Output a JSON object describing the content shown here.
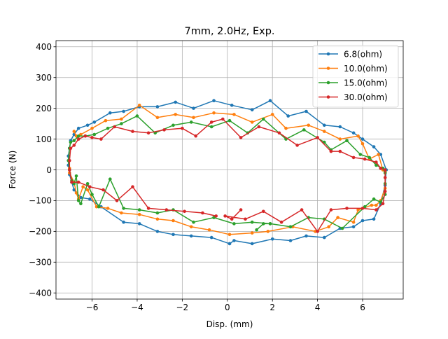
{
  "chart_data": {
    "type": "line",
    "title": "7mm, 2.0Hz, Exp.",
    "xlabel": "Disp. (mm)",
    "ylabel": "Force (N)",
    "xlim": [
      -7.6,
      7.8
    ],
    "ylim": [
      -420,
      420
    ],
    "xticks": [
      -6,
      -4,
      -2,
      0,
      2,
      4,
      6
    ],
    "yticks": [
      -400,
      -300,
      -200,
      -100,
      0,
      100,
      200,
      300,
      400
    ],
    "grid": true,
    "legend_position": "top-right",
    "series": [
      {
        "name": "6.8(ohm)",
        "color": "#1f77b4",
        "points": [
          [
            0.1,
            -240
          ],
          [
            0.3,
            -230
          ],
          [
            1.1,
            -240
          ],
          [
            2.0,
            -225
          ],
          [
            2.8,
            -230
          ],
          [
            3.5,
            -215
          ],
          [
            4.3,
            -220
          ],
          [
            5.0,
            -190
          ],
          [
            5.6,
            -185
          ],
          [
            6.0,
            -165
          ],
          [
            6.5,
            -160
          ],
          [
            6.8,
            -110
          ],
          [
            7.0,
            -50
          ],
          [
            7.05,
            0
          ],
          [
            6.8,
            50
          ],
          [
            6.5,
            75
          ],
          [
            6.0,
            100
          ],
          [
            5.6,
            120
          ],
          [
            5.0,
            140
          ],
          [
            4.3,
            145
          ],
          [
            3.5,
            190
          ],
          [
            2.7,
            175
          ],
          [
            1.9,
            225
          ],
          [
            1.1,
            195
          ],
          [
            0.2,
            210
          ],
          [
            -0.6,
            225
          ],
          [
            -1.5,
            200
          ],
          [
            -2.3,
            220
          ],
          [
            -3.1,
            205
          ],
          [
            -3.9,
            205
          ],
          [
            -4.6,
            190
          ],
          [
            -5.2,
            185
          ],
          [
            -5.9,
            155
          ],
          [
            -6.2,
            145
          ],
          [
            -6.6,
            135
          ],
          [
            -6.8,
            115
          ],
          [
            -6.95,
            95
          ],
          [
            -7.0,
            70
          ],
          [
            -7.05,
            45
          ],
          [
            -7.05,
            15
          ],
          [
            -7.0,
            -15
          ],
          [
            -6.9,
            -40
          ],
          [
            -6.8,
            -65
          ],
          [
            -6.5,
            -90
          ],
          [
            -6.1,
            -95
          ],
          [
            -5.6,
            -120
          ],
          [
            -4.6,
            -170
          ],
          [
            -3.9,
            -175
          ],
          [
            -3.1,
            -200
          ],
          [
            -2.4,
            -210
          ],
          [
            -1.6,
            -215
          ],
          [
            -0.7,
            -220
          ],
          [
            0.1,
            -240
          ]
        ]
      },
      {
        "name": "10.0(ohm)",
        "color": "#ff7f0e",
        "points": [
          [
            -6.8,
            125
          ],
          [
            -6.7,
            110
          ],
          [
            -6.5,
            115
          ],
          [
            -6.0,
            135
          ],
          [
            -5.4,
            160
          ],
          [
            -4.7,
            165
          ],
          [
            -3.9,
            210
          ],
          [
            -3.1,
            170
          ],
          [
            -2.3,
            180
          ],
          [
            -1.5,
            170
          ],
          [
            -0.6,
            185
          ],
          [
            0.3,
            180
          ],
          [
            1.1,
            155
          ],
          [
            2.0,
            180
          ],
          [
            2.6,
            135
          ],
          [
            3.6,
            145
          ],
          [
            4.3,
            125
          ],
          [
            5.0,
            100
          ],
          [
            5.8,
            110
          ],
          [
            6.0,
            85
          ],
          [
            6.3,
            35
          ],
          [
            6.7,
            50
          ],
          [
            6.9,
            0
          ],
          [
            7.0,
            -5
          ],
          [
            7.0,
            -60
          ],
          [
            6.8,
            -100
          ],
          [
            6.6,
            -115
          ],
          [
            6.4,
            -115
          ],
          [
            5.8,
            -130
          ],
          [
            5.6,
            -170
          ],
          [
            4.9,
            -155
          ],
          [
            4.5,
            -185
          ],
          [
            3.9,
            -200
          ],
          [
            2.9,
            -185
          ],
          [
            1.8,
            -200
          ],
          [
            1.1,
            -205
          ],
          [
            0.1,
            -210
          ],
          [
            -0.8,
            -195
          ],
          [
            -1.6,
            -185
          ],
          [
            -2.4,
            -165
          ],
          [
            -3.1,
            -160
          ],
          [
            -3.9,
            -145
          ],
          [
            -4.7,
            -140
          ],
          [
            -5.3,
            -125
          ],
          [
            -5.8,
            -120
          ],
          [
            -6.2,
            -65
          ],
          [
            -6.4,
            -55
          ],
          [
            -6.6,
            -95
          ],
          [
            -6.7,
            -75
          ],
          [
            -6.8,
            -40
          ],
          [
            -7.0,
            -10
          ],
          [
            -7.0,
            5
          ]
        ]
      },
      {
        "name": "15.0(ohm)",
        "color": "#2ca02c",
        "points": [
          [
            1.3,
            -195
          ],
          [
            1.6,
            -175
          ],
          [
            1.9,
            -175
          ],
          [
            2.8,
            -185
          ],
          [
            3.6,
            -155
          ],
          [
            4.3,
            -160
          ],
          [
            5.1,
            -190
          ],
          [
            6.1,
            -120
          ],
          [
            6.5,
            -95
          ],
          [
            6.8,
            -105
          ],
          [
            7.0,
            -80
          ],
          [
            7.0,
            -45
          ],
          [
            7.0,
            -10
          ],
          [
            6.9,
            5
          ],
          [
            6.6,
            15
          ],
          [
            6.3,
            40
          ],
          [
            5.9,
            50
          ],
          [
            5.3,
            95
          ],
          [
            4.6,
            65
          ],
          [
            4.3,
            90
          ],
          [
            3.4,
            130
          ],
          [
            2.6,
            100
          ],
          [
            1.6,
            165
          ],
          [
            0.9,
            120
          ],
          [
            0.1,
            160
          ],
          [
            -0.7,
            140
          ],
          [
            -1.6,
            155
          ],
          [
            -2.4,
            145
          ],
          [
            -3.2,
            120
          ],
          [
            -4.0,
            175
          ],
          [
            -4.7,
            150
          ],
          [
            -5.3,
            135
          ],
          [
            -5.9,
            115
          ],
          [
            -6.3,
            110
          ],
          [
            -6.6,
            110
          ],
          [
            -6.8,
            95
          ],
          [
            -6.95,
            90
          ],
          [
            -7.0,
            70
          ],
          [
            -7.05,
            30
          ],
          [
            -7.0,
            0
          ],
          [
            -6.9,
            -35
          ],
          [
            -6.8,
            -45
          ],
          [
            -6.7,
            -20
          ],
          [
            -6.6,
            -100
          ],
          [
            -6.5,
            -110
          ],
          [
            -6.2,
            -45
          ],
          [
            -6.0,
            -80
          ],
          [
            -5.7,
            -120
          ],
          [
            -5.2,
            -30
          ],
          [
            -4.6,
            -125
          ],
          [
            -3.9,
            -130
          ],
          [
            -3.1,
            -140
          ],
          [
            -2.4,
            -130
          ],
          [
            -1.5,
            -170
          ],
          [
            -0.6,
            -155
          ],
          [
            0.3,
            -175
          ],
          [
            1.1,
            -170
          ],
          [
            1.9,
            -175
          ],
          [
            2.8,
            -185
          ]
        ]
      },
      {
        "name": "30.0(ohm)",
        "color": "#d62728",
        "points": [
          [
            0.6,
            -130
          ],
          [
            0.2,
            -160
          ],
          [
            -0.1,
            -150
          ],
          [
            0.8,
            -160
          ],
          [
            1.6,
            -135
          ],
          [
            2.4,
            -170
          ],
          [
            3.3,
            -130
          ],
          [
            4.0,
            -200
          ],
          [
            4.6,
            -130
          ],
          [
            5.3,
            -125
          ],
          [
            6.0,
            -125
          ],
          [
            6.6,
            -130
          ],
          [
            6.9,
            -110
          ],
          [
            7.0,
            -70
          ],
          [
            7.0,
            -25
          ],
          [
            7.0,
            0
          ],
          [
            6.8,
            5
          ],
          [
            6.6,
            25
          ],
          [
            6.1,
            35
          ],
          [
            5.6,
            40
          ],
          [
            5.0,
            60
          ],
          [
            4.6,
            60
          ],
          [
            4.0,
            105
          ],
          [
            3.1,
            80
          ],
          [
            2.3,
            120
          ],
          [
            1.4,
            140
          ],
          [
            0.6,
            105
          ],
          [
            -0.2,
            165
          ],
          [
            -0.7,
            155
          ],
          [
            -1.4,
            110
          ],
          [
            -2.0,
            135
          ],
          [
            -2.8,
            130
          ],
          [
            -3.5,
            120
          ],
          [
            -4.2,
            125
          ],
          [
            -5.0,
            140
          ],
          [
            -5.6,
            100
          ],
          [
            -6.0,
            105
          ],
          [
            -6.3,
            110
          ],
          [
            -6.6,
            100
          ],
          [
            -6.8,
            80
          ],
          [
            -6.95,
            70
          ],
          [
            -7.0,
            30
          ],
          [
            -7.0,
            0
          ],
          [
            -6.9,
            -40
          ],
          [
            -6.6,
            -40
          ],
          [
            -6.1,
            -55
          ],
          [
            -5.5,
            -65
          ],
          [
            -4.9,
            -100
          ],
          [
            -4.2,
            -55
          ],
          [
            -3.5,
            -125
          ],
          [
            -2.7,
            -130
          ],
          [
            -1.9,
            -135
          ],
          [
            -1.1,
            -140
          ],
          [
            -0.5,
            -150
          ]
        ]
      }
    ]
  }
}
